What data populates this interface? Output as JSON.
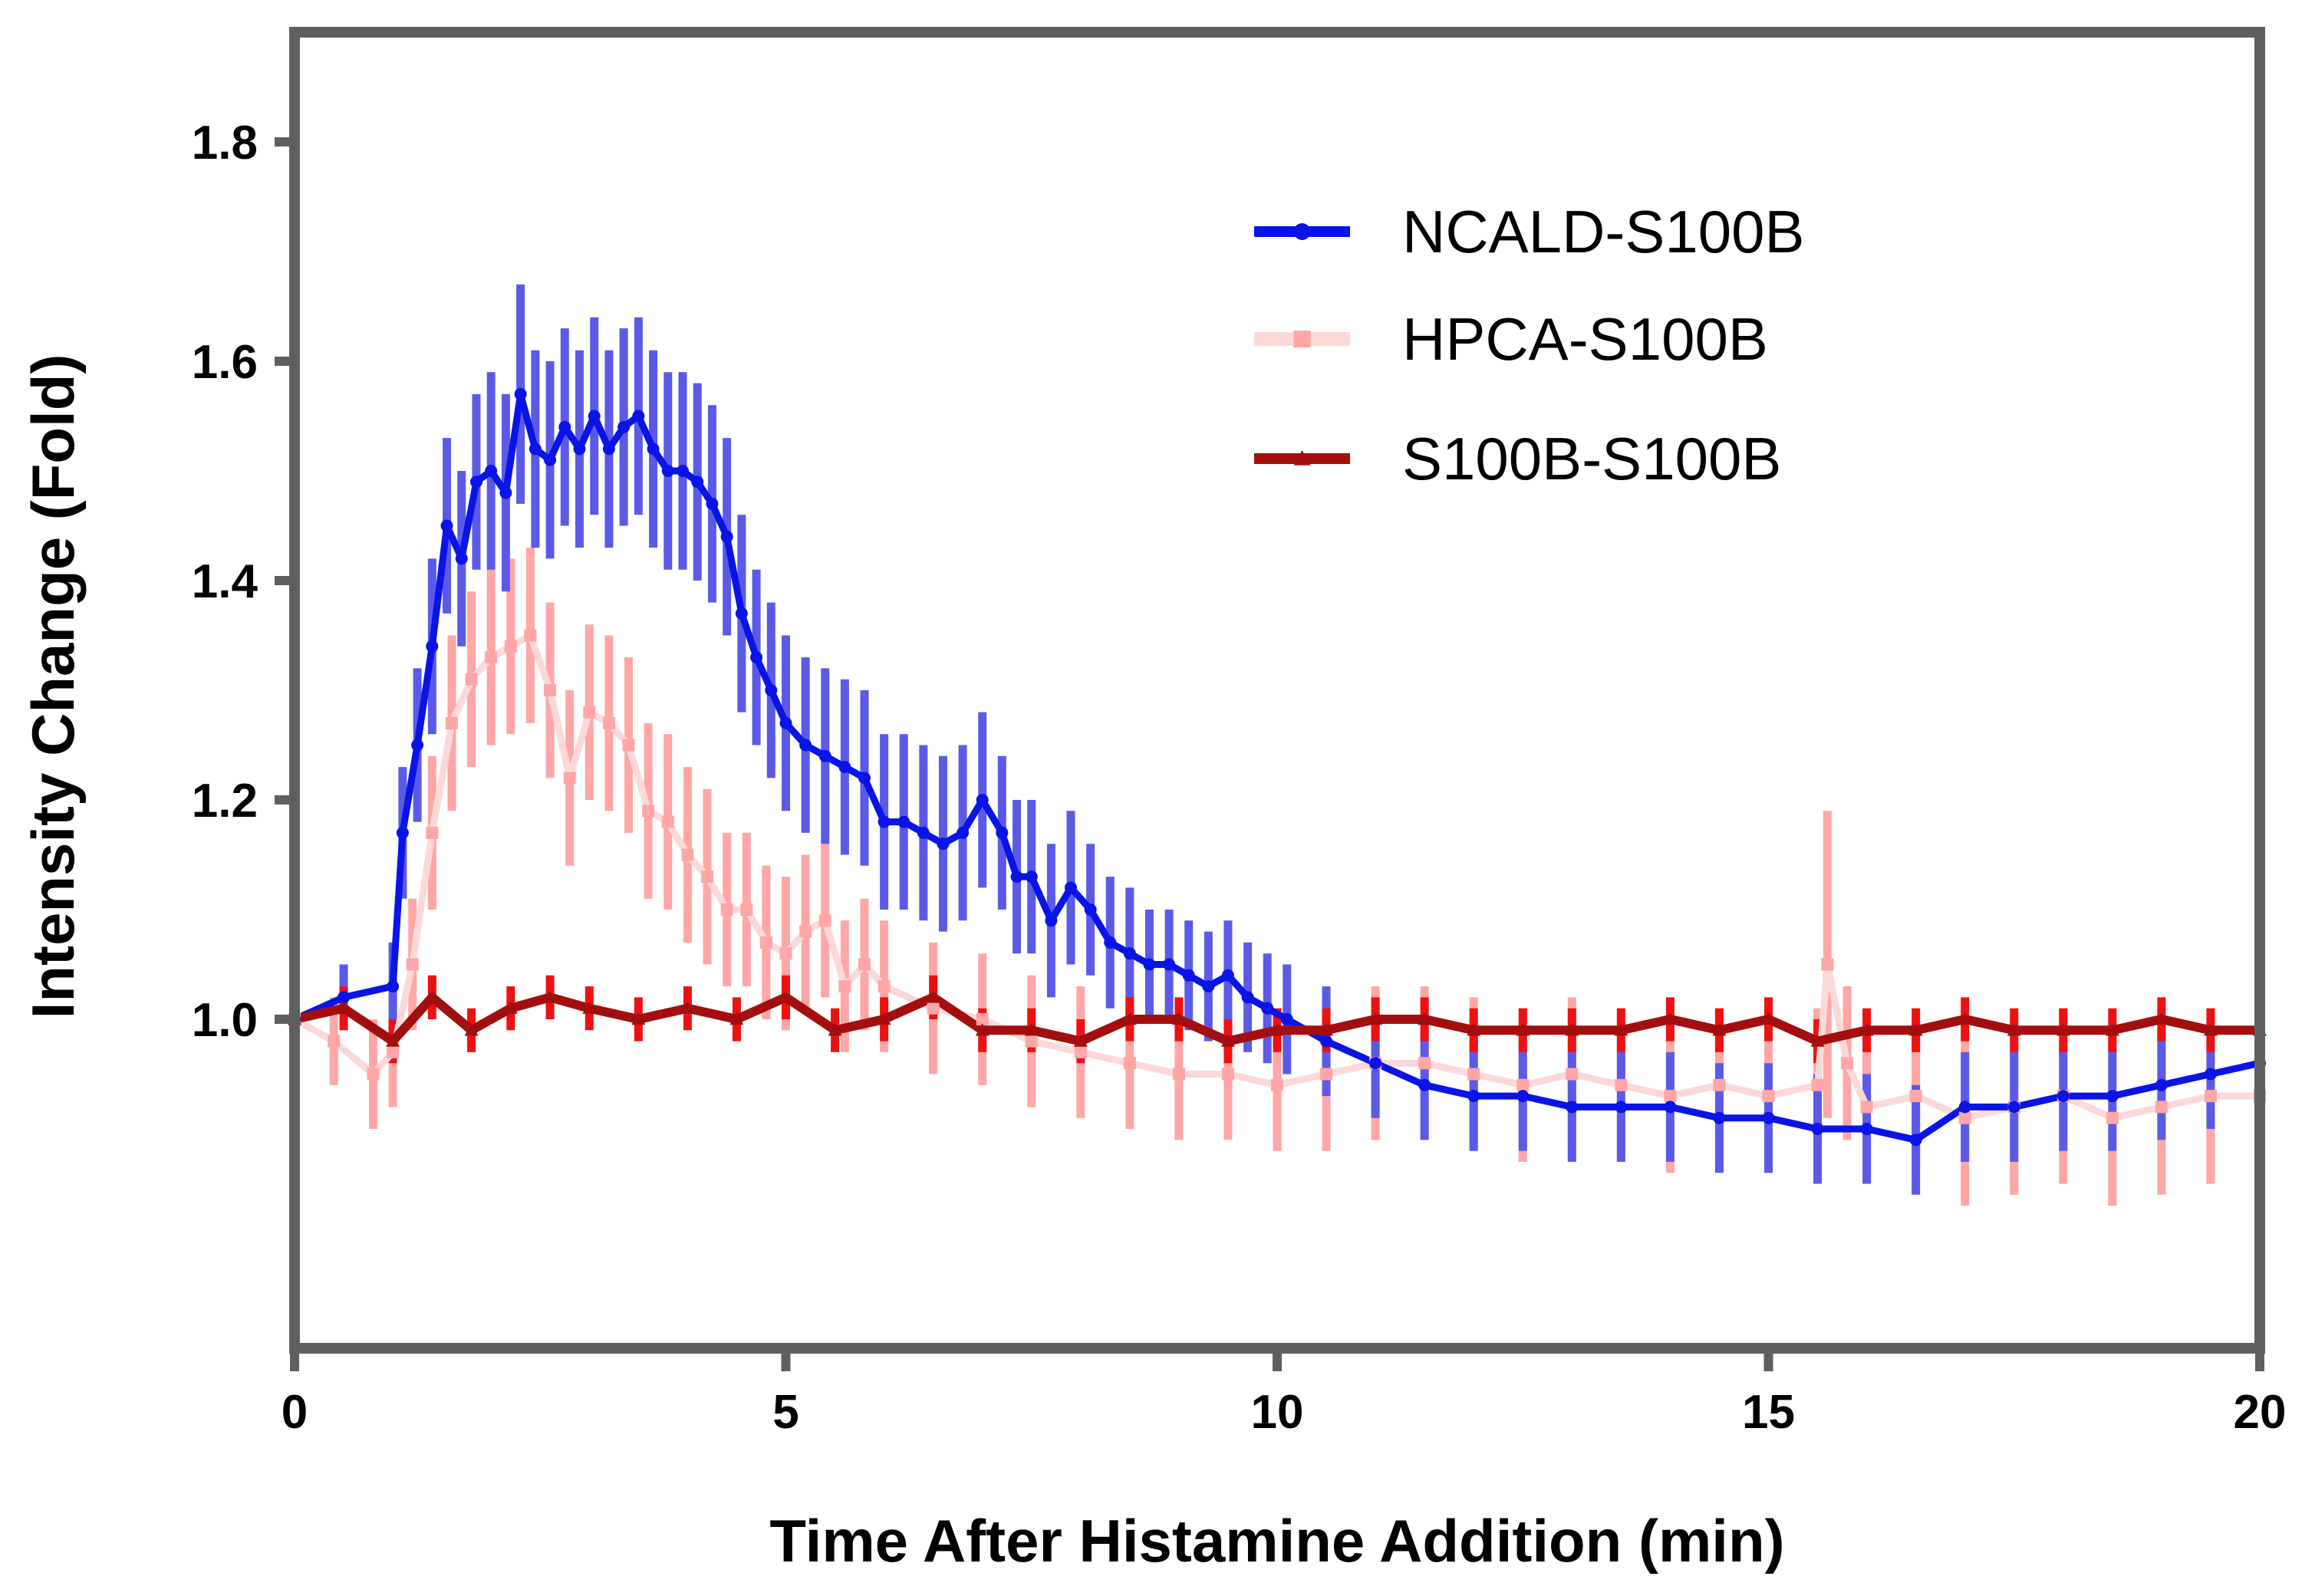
{
  "chart_data": {
    "type": "line",
    "title": "",
    "xlabel": "Time After Histamine Addition (min)",
    "ylabel": "Intensity Change (Fold)",
    "xlim": [
      0,
      20
    ],
    "ylim": [
      0.7,
      1.9
    ],
    "xticks": [
      0,
      5,
      10,
      15,
      20
    ],
    "xtick_labels": [
      "0",
      "5",
      "10",
      "15",
      "20"
    ],
    "yticks": [
      1.0,
      1.2,
      1.4,
      1.6,
      1.8
    ],
    "ytick_labels": [
      "1.0",
      "1.2",
      "1.4",
      "1.6",
      "1.8"
    ],
    "legend_position": "top-right",
    "error_bars": true,
    "series": [
      {
        "name": "NCALD-S100B",
        "color": "#0a14e6",
        "error_color": "#5a5ae6",
        "marker": "circle",
        "x": [
          0,
          0.5,
          1.0,
          1.1,
          1.25,
          1.4,
          1.55,
          1.7,
          1.85,
          2.0,
          2.15,
          2.3,
          2.45,
          2.6,
          2.75,
          2.9,
          3.05,
          3.2,
          3.35,
          3.5,
          3.65,
          3.8,
          3.95,
          4.1,
          4.25,
          4.4,
          4.55,
          4.7,
          4.85,
          5.0,
          5.2,
          5.4,
          5.6,
          5.8,
          6.0,
          6.2,
          6.4,
          6.6,
          6.8,
          7.0,
          7.2,
          7.35,
          7.5,
          7.7,
          7.9,
          8.1,
          8.3,
          8.5,
          8.7,
          8.9,
          9.1,
          9.3,
          9.5,
          9.7,
          9.9,
          10.1,
          10.5,
          11.0,
          11.5,
          12.0,
          12.5,
          13.0,
          13.5,
          14.0,
          14.5,
          15.0,
          15.5,
          16.0,
          16.5,
          17.0,
          17.5,
          18.0,
          18.5,
          19.0,
          19.5,
          20.0
        ],
        "y": [
          1.0,
          1.02,
          1.03,
          1.17,
          1.25,
          1.34,
          1.45,
          1.42,
          1.49,
          1.5,
          1.48,
          1.57,
          1.52,
          1.51,
          1.54,
          1.52,
          1.55,
          1.52,
          1.54,
          1.55,
          1.52,
          1.5,
          1.5,
          1.49,
          1.47,
          1.44,
          1.37,
          1.33,
          1.3,
          1.27,
          1.25,
          1.24,
          1.23,
          1.22,
          1.18,
          1.18,
          1.17,
          1.16,
          1.17,
          1.2,
          1.17,
          1.13,
          1.13,
          1.09,
          1.12,
          1.1,
          1.07,
          1.06,
          1.05,
          1.05,
          1.04,
          1.03,
          1.04,
          1.02,
          1.01,
          1.0,
          0.98,
          0.96,
          0.94,
          0.93,
          0.93,
          0.92,
          0.92,
          0.92,
          0.91,
          0.91,
          0.9,
          0.9,
          0.89,
          0.92,
          0.92,
          0.93,
          0.93,
          0.94,
          0.95,
          0.96
        ],
        "err": [
          0.02,
          0.03,
          0.04,
          0.06,
          0.07,
          0.08,
          0.08,
          0.08,
          0.08,
          0.09,
          0.09,
          0.1,
          0.09,
          0.09,
          0.09,
          0.09,
          0.09,
          0.09,
          0.09,
          0.09,
          0.09,
          0.09,
          0.09,
          0.09,
          0.09,
          0.09,
          0.09,
          0.08,
          0.08,
          0.08,
          0.08,
          0.08,
          0.08,
          0.08,
          0.08,
          0.08,
          0.08,
          0.08,
          0.08,
          0.08,
          0.07,
          0.07,
          0.07,
          0.07,
          0.07,
          0.06,
          0.06,
          0.06,
          0.05,
          0.05,
          0.05,
          0.05,
          0.05,
          0.05,
          0.05,
          0.05,
          0.05,
          0.05,
          0.05,
          0.05,
          0.05,
          0.05,
          0.05,
          0.05,
          0.05,
          0.05,
          0.05,
          0.05,
          0.05,
          0.05,
          0.05,
          0.05,
          0.05,
          0.05,
          0.05,
          0.05
        ]
      },
      {
        "name": "HPCA-S100B",
        "color": "#fcd9d9",
        "error_color": "#ffa6a6",
        "marker": "square",
        "x": [
          0,
          0.4,
          0.8,
          1.0,
          1.2,
          1.4,
          1.6,
          1.8,
          2.0,
          2.2,
          2.4,
          2.6,
          2.8,
          3.0,
          3.2,
          3.4,
          3.6,
          3.8,
          4.0,
          4.2,
          4.4,
          4.6,
          4.8,
          5.0,
          5.2,
          5.4,
          5.6,
          5.8,
          6.0,
          6.5,
          7.0,
          7.5,
          8.0,
          8.5,
          9.0,
          9.5,
          10.0,
          10.5,
          11.0,
          11.5,
          12.0,
          12.5,
          13.0,
          13.5,
          14.0,
          14.5,
          15.0,
          15.5,
          15.6,
          15.8,
          16.0,
          16.5,
          17.0,
          17.5,
          18.0,
          18.5,
          19.0,
          19.5,
          20.0
        ],
        "y": [
          1.0,
          0.98,
          0.95,
          0.97,
          1.05,
          1.17,
          1.27,
          1.31,
          1.33,
          1.34,
          1.35,
          1.3,
          1.22,
          1.28,
          1.27,
          1.25,
          1.19,
          1.18,
          1.15,
          1.13,
          1.1,
          1.1,
          1.07,
          1.06,
          1.08,
          1.09,
          1.03,
          1.05,
          1.03,
          1.01,
          1.0,
          0.98,
          0.97,
          0.96,
          0.95,
          0.95,
          0.94,
          0.95,
          0.96,
          0.96,
          0.95,
          0.94,
          0.95,
          0.94,
          0.93,
          0.94,
          0.93,
          0.94,
          1.05,
          0.96,
          0.92,
          0.93,
          0.91,
          0.92,
          0.93,
          0.91,
          0.92,
          0.93,
          0.93
        ],
        "err": [
          0.03,
          0.04,
          0.05,
          0.05,
          0.06,
          0.07,
          0.08,
          0.08,
          0.08,
          0.08,
          0.08,
          0.08,
          0.08,
          0.08,
          0.08,
          0.08,
          0.08,
          0.08,
          0.08,
          0.08,
          0.07,
          0.07,
          0.07,
          0.07,
          0.07,
          0.07,
          0.06,
          0.06,
          0.06,
          0.06,
          0.06,
          0.06,
          0.06,
          0.06,
          0.06,
          0.06,
          0.06,
          0.07,
          0.07,
          0.07,
          0.07,
          0.07,
          0.07,
          0.07,
          0.07,
          0.07,
          0.07,
          0.07,
          0.14,
          0.07,
          0.07,
          0.07,
          0.08,
          0.08,
          0.08,
          0.08,
          0.08,
          0.08,
          0.08
        ]
      },
      {
        "name": "S100B-S100B",
        "color": "#a30f0f",
        "error_color": "#ee1111",
        "marker": "triangle",
        "x": [
          0,
          0.5,
          1.0,
          1.4,
          1.8,
          2.2,
          2.6,
          3.0,
          3.5,
          4.0,
          4.5,
          5.0,
          5.5,
          6.0,
          6.5,
          7.0,
          7.5,
          8.0,
          8.5,
          9.0,
          9.5,
          10.0,
          10.5,
          11.0,
          11.5,
          12.0,
          12.5,
          13.0,
          13.5,
          14.0,
          14.5,
          15.0,
          15.5,
          16.0,
          16.5,
          17.0,
          17.5,
          18.0,
          18.5,
          19.0,
          19.5,
          20.0
        ],
        "y": [
          1.0,
          1.01,
          0.98,
          1.02,
          0.99,
          1.01,
          1.02,
          1.01,
          1.0,
          1.01,
          1.0,
          1.02,
          0.99,
          1.0,
          1.02,
          0.99,
          0.99,
          0.98,
          1.0,
          1.0,
          0.98,
          0.99,
          0.99,
          1.0,
          1.0,
          0.99,
          0.99,
          0.99,
          0.99,
          1.0,
          0.99,
          1.0,
          0.98,
          0.99,
          0.99,
          1.0,
          0.99,
          0.99,
          0.99,
          1.0,
          0.99,
          0.99
        ],
        "err": [
          0.02,
          0.02,
          0.02,
          0.02,
          0.02,
          0.02,
          0.02,
          0.02,
          0.02,
          0.02,
          0.02,
          0.02,
          0.02,
          0.02,
          0.02,
          0.02,
          0.02,
          0.02,
          0.02,
          0.02,
          0.02,
          0.02,
          0.02,
          0.02,
          0.02,
          0.02,
          0.02,
          0.02,
          0.02,
          0.02,
          0.02,
          0.02,
          0.02,
          0.02,
          0.02,
          0.02,
          0.02,
          0.02,
          0.02,
          0.02,
          0.02,
          0.02
        ]
      }
    ]
  }
}
